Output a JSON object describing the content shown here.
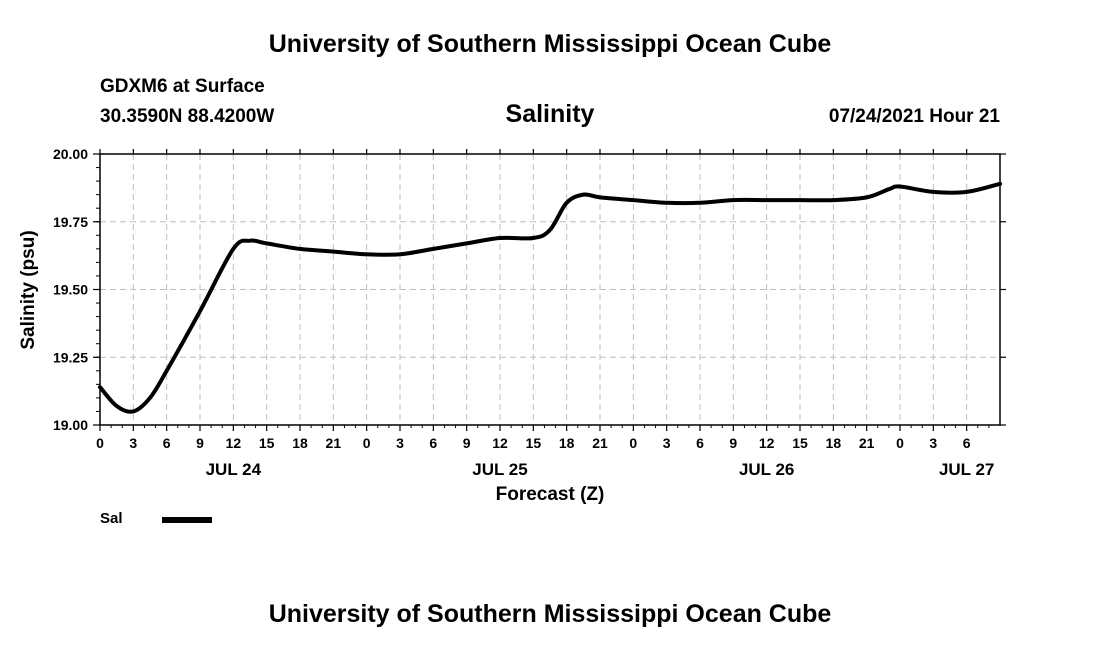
{
  "header": {
    "title": "University of Southern Mississippi Ocean Cube",
    "station": "GDXM6 at Surface",
    "coords": "30.3590N  88.4200W",
    "datetime": "07/24/2021 Hour 21",
    "footer_title": "University of Southern Mississippi Ocean Cube"
  },
  "legend": {
    "label": "Sal",
    "color": "#000000"
  },
  "chart_data": {
    "type": "line",
    "title": "Salinity",
    "xlabel": "Forecast (Z)",
    "ylabel": "Salinity (psu)",
    "ylim": [
      19.0,
      20.0
    ],
    "xlim": [
      0,
      81
    ],
    "grid": true,
    "legend_position": "bottom-left",
    "y_ticks": [
      19.0,
      19.25,
      19.5,
      19.75,
      20.0
    ],
    "y_tick_labels": [
      "19.00",
      "19.25",
      "19.50",
      "19.75",
      "20.00"
    ],
    "x_tick_labels": [
      "0",
      "3",
      "6",
      "9",
      "12",
      "15",
      "18",
      "21",
      "0",
      "3",
      "6",
      "9",
      "12",
      "15",
      "18",
      "21",
      "0",
      "3",
      "6",
      "9",
      "12",
      "15",
      "18",
      "21",
      "0",
      "3",
      "6"
    ],
    "day_labels": [
      {
        "label": "JUL 24",
        "hour": 12
      },
      {
        "label": "JUL 25",
        "hour": 36
      },
      {
        "label": "JUL 26",
        "hour": 60
      },
      {
        "label": "JUL 27",
        "hour": 78
      }
    ],
    "series": [
      {
        "name": "Sal",
        "color": "#000000",
        "x": [
          0,
          1.5,
          3,
          4.5,
          6,
          9,
          12,
          13.5,
          15,
          18,
          21,
          24,
          27,
          30,
          33,
          36,
          39,
          40.5,
          42,
          43.5,
          45,
          48,
          51,
          54,
          57,
          60,
          63,
          66,
          69,
          71,
          72,
          75,
          78,
          81
        ],
        "values": [
          19.14,
          19.07,
          19.05,
          19.1,
          19.2,
          19.42,
          19.65,
          19.68,
          19.67,
          19.65,
          19.64,
          19.63,
          19.63,
          19.65,
          19.67,
          19.69,
          19.69,
          19.72,
          19.82,
          19.85,
          19.84,
          19.83,
          19.82,
          19.82,
          19.83,
          19.83,
          19.83,
          19.83,
          19.84,
          19.87,
          19.88,
          19.86,
          19.86,
          19.89
        ]
      }
    ]
  }
}
